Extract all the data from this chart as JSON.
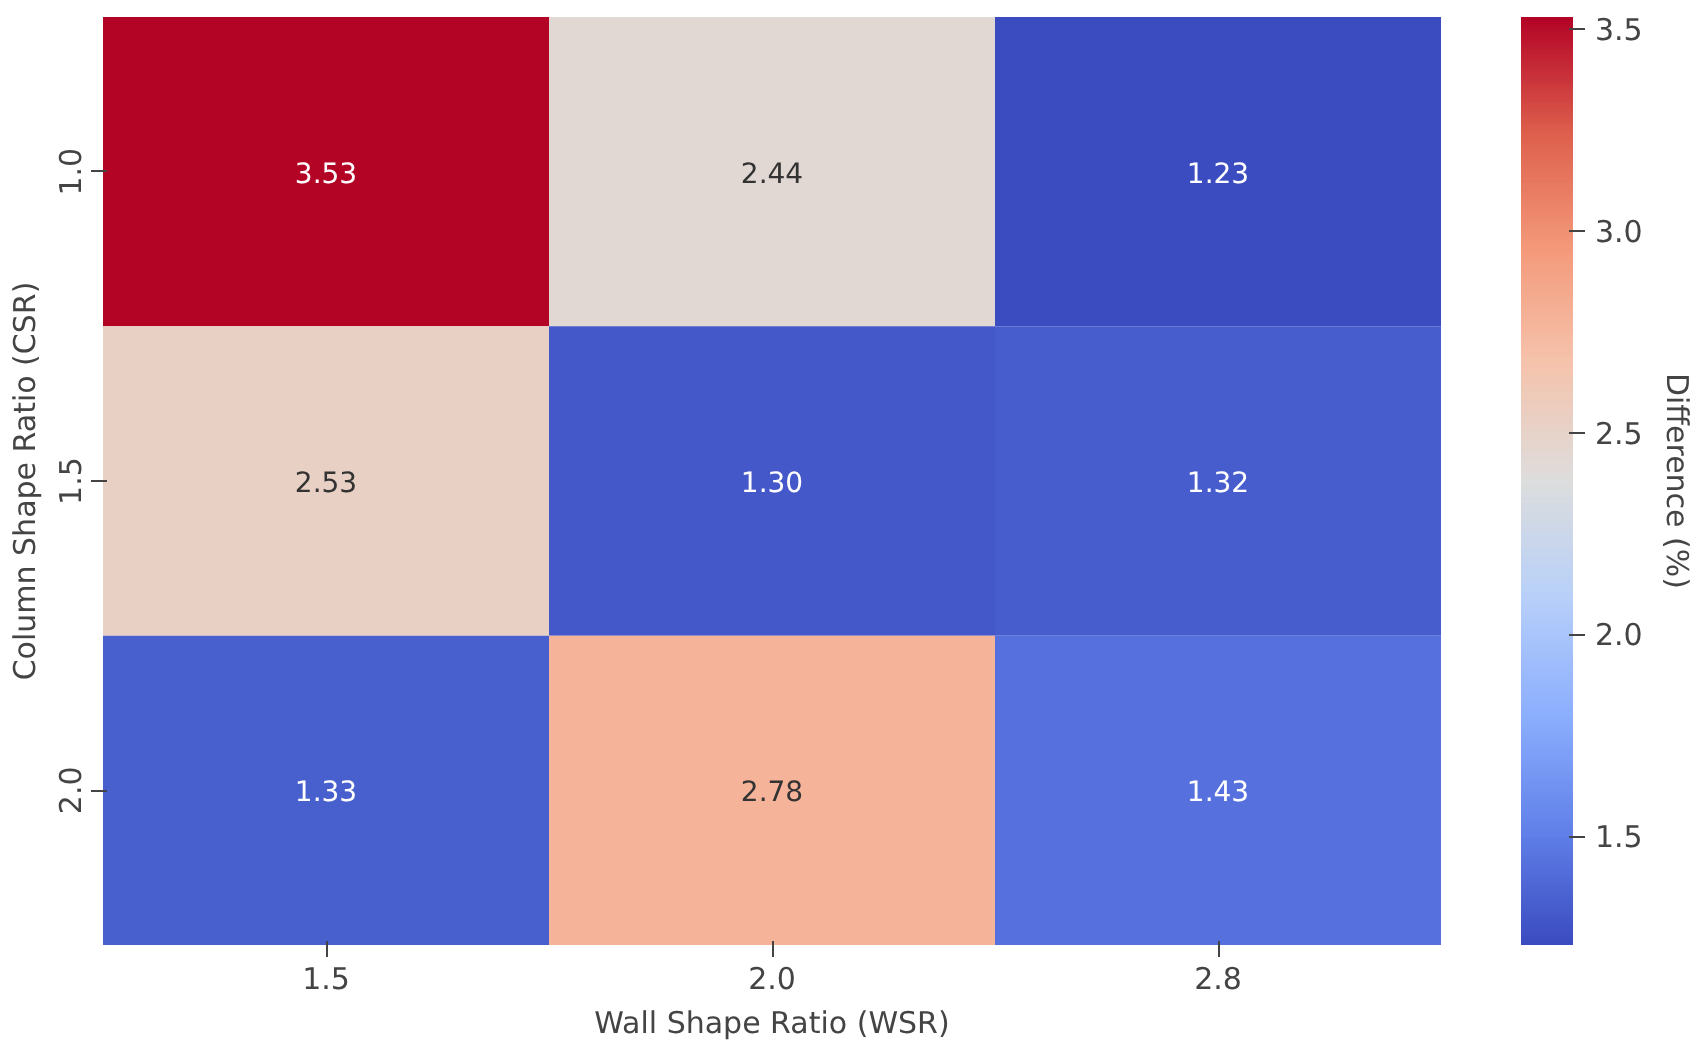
{
  "chart_data": {
    "type": "heatmap",
    "xlabel": "Wall Shape Ratio (WSR)",
    "ylabel": "Column Shape Ratio (CSR)",
    "clabel": "Difference (%)",
    "categories": [
      "1.5",
      "2.0",
      "2.8"
    ],
    "y_categories": [
      "1.0",
      "1.5",
      "2.0"
    ],
    "cells": [
      [
        3.53,
        2.44,
        1.23
      ],
      [
        2.53,
        1.3,
        1.32
      ],
      [
        1.33,
        2.78,
        1.43
      ]
    ],
    "cell_labels": [
      [
        "3.53",
        "2.44",
        "1.23"
      ],
      [
        "2.53",
        "1.30",
        "1.32"
      ],
      [
        "1.33",
        "2.78",
        "1.43"
      ]
    ],
    "clim": [
      1.23,
      3.53
    ],
    "cticks": [
      1.5,
      {
        "value": 2,
        "label": "2.0"
      },
      2.5,
      {
        "value": 3,
        "label": "3.0"
      },
      3.5
    ]
  }
}
